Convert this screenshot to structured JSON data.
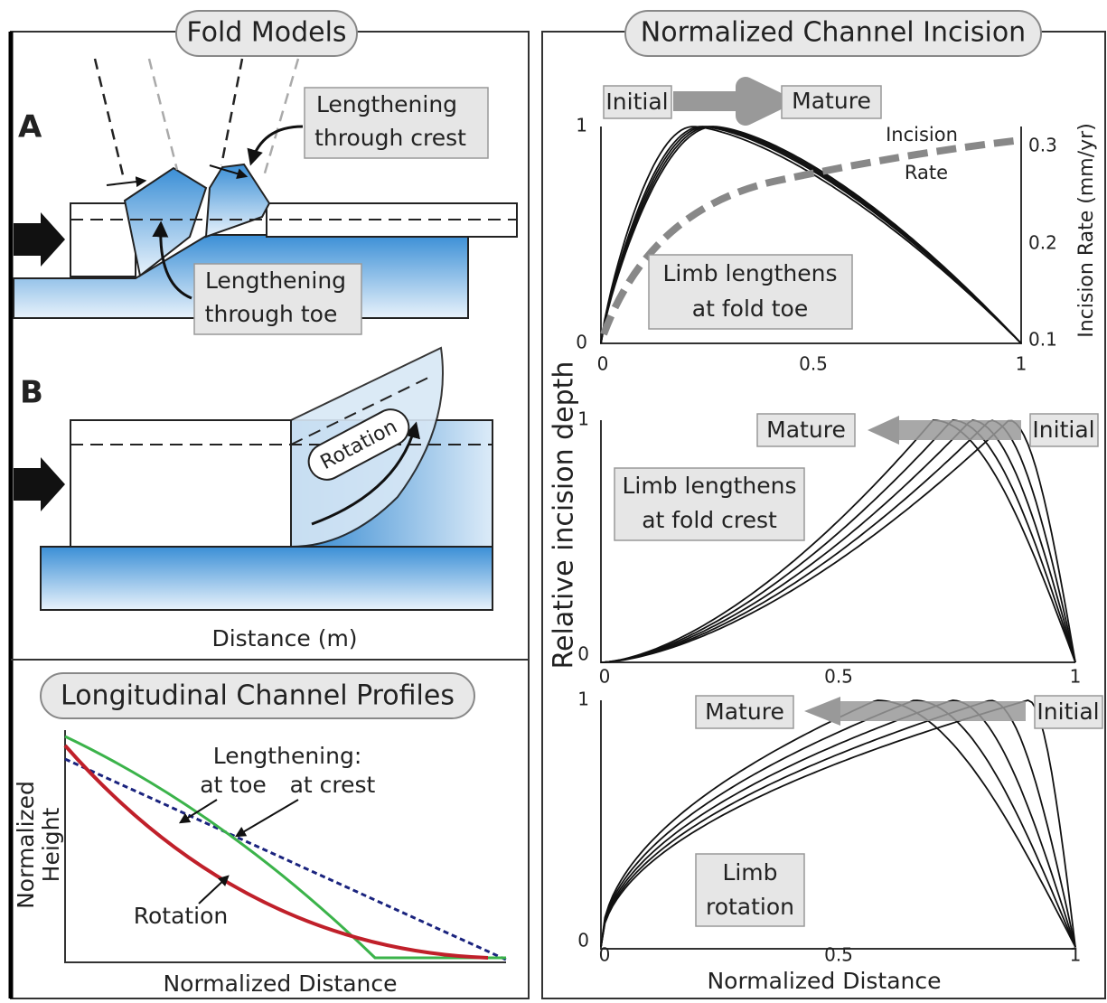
{
  "fold_models": {
    "title": "Fold Models",
    "label_a": "A",
    "crest_label": [
      "Lengthening",
      "through crest"
    ],
    "toe_label": [
      "Lengthening",
      "through toe"
    ],
    "label_b": "B",
    "rotation": "Rotation",
    "x_label": "Distance (m)"
  },
  "profiles": {
    "title": "Longitudinal Channel Profiles",
    "y_label": [
      "Normalized",
      "Height"
    ],
    "lengthening": "Lengthening:",
    "at_toe": "at toe",
    "at_crest": "at crest",
    "rotation": "Rotation",
    "x_label": "Normalized Distance"
  },
  "incision": {
    "title": "Normalized Channel Incision",
    "y_label": "Relative incision depth",
    "x_label": "Normalized Distance",
    "panel_toe": {
      "initial": "Initial",
      "mature": "Mature",
      "yticks": [
        "0",
        "1"
      ],
      "xticks": [
        "0",
        "0.5",
        "1"
      ],
      "y2_label": "Incision Rate (mm/yr)",
      "y2ticks": [
        "0.1",
        "0.2",
        "0.3"
      ],
      "rate_label": [
        "Incision",
        "Rate"
      ],
      "box": [
        "Limb lengthens",
        "at fold toe"
      ]
    },
    "panel_crest": {
      "mature": "Mature",
      "initial": "Initial",
      "yticks": [
        "0",
        "1"
      ],
      "xticks": [
        "0",
        "0.5",
        "1"
      ],
      "box": [
        "Limb lengthens",
        "at fold crest"
      ]
    },
    "panel_rotation": {
      "mature": "Mature",
      "initial": "Initial",
      "yticks": [
        "0",
        "1"
      ],
      "xticks": [
        "0",
        "0.5",
        "1"
      ],
      "box": [
        "Limb",
        "rotation"
      ]
    }
  }
}
